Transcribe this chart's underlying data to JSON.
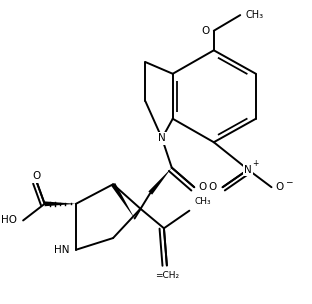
{
  "bg_color": "#ffffff",
  "line_color": "#000000",
  "lw": 1.4,
  "fs": 7.5,
  "figsize": [
    3.12,
    3.04
  ],
  "dpi": 100,
  "xlim": [
    0,
    312
  ],
  "ylim": [
    0,
    304
  ]
}
